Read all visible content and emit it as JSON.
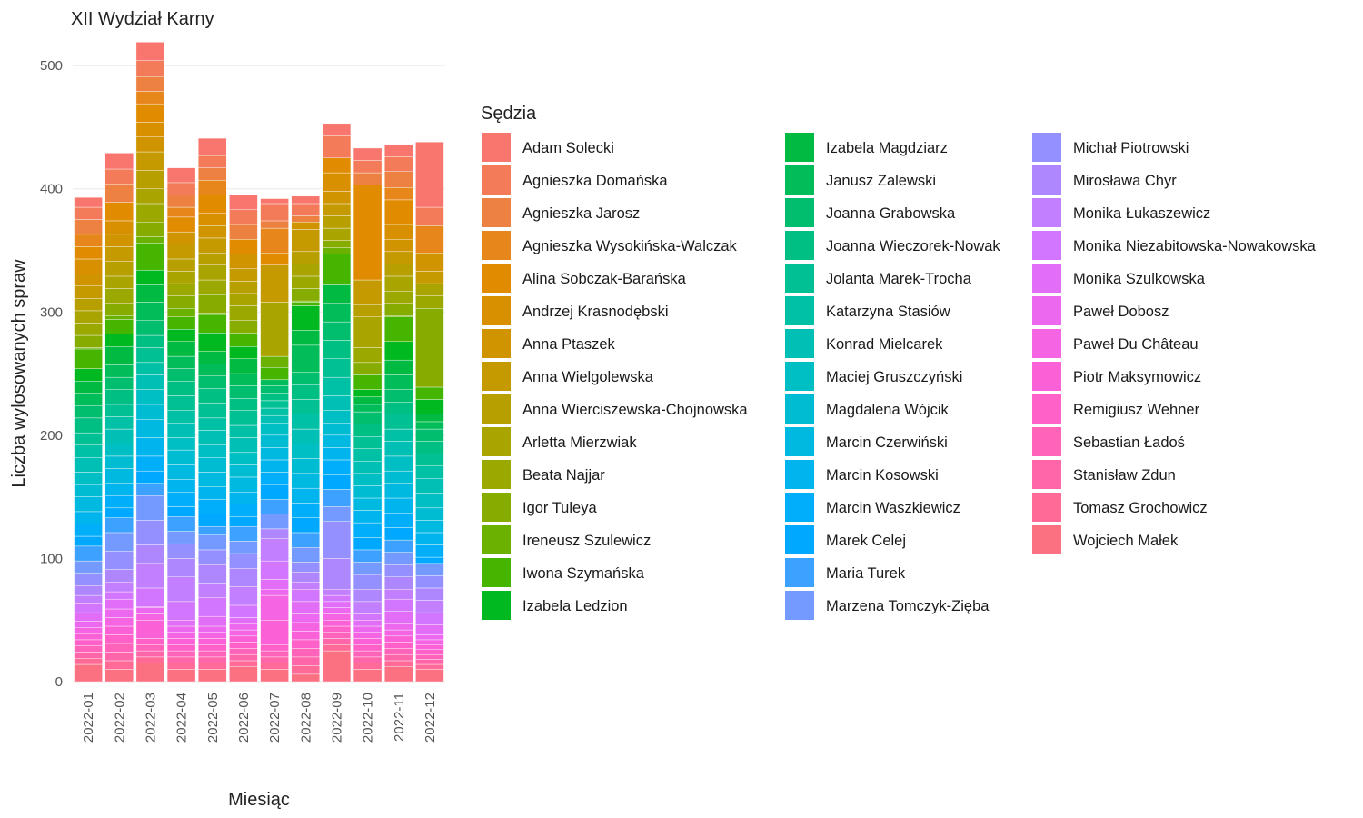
{
  "chart_data": {
    "type": "stacked_bar",
    "title": "XII Wydział Karny",
    "x_label": "Miesiąc",
    "y_label": "Liczba wylosowanych spraw",
    "legend_title": "Sędzia",
    "legend_position": "right",
    "grid": true,
    "categories": [
      "2022-01",
      "2022-02",
      "2022-03",
      "2022-04",
      "2022-05",
      "2022-06",
      "2022-07",
      "2022-08",
      "2022-09",
      "2022-10",
      "2022-11",
      "2022-12"
    ],
    "ylim": [
      0,
      520
    ],
    "yticks": [
      0,
      100,
      200,
      300,
      400,
      500
    ],
    "series": [
      {
        "name": "Adam Solecki",
        "color": "#F8766D",
        "values": [
          8,
          13,
          15,
          12,
          14,
          12,
          4,
          6,
          10,
          10,
          10,
          53
        ]
      },
      {
        "name": "Agnieszka Domańska",
        "color": "#F37B59",
        "values": [
          10,
          12,
          13,
          10,
          10,
          12,
          14,
          10,
          18,
          10,
          12,
          15
        ]
      },
      {
        "name": "Agnieszka Jarosz",
        "color": "#ED8141",
        "values": [
          12,
          15,
          12,
          10,
          10,
          12,
          6,
          5,
          0,
          10,
          13,
          0
        ]
      },
      {
        "name": "Agnieszka Wysokińska-Walczak",
        "color": "#E7861B",
        "values": [
          10,
          0,
          10,
          8,
          12,
          0,
          20,
          0,
          0,
          0,
          10,
          22
        ]
      },
      {
        "name": "Alina Sobczak-Barańska",
        "color": "#E08B00",
        "values": [
          10,
          15,
          15,
          12,
          15,
          12,
          10,
          0,
          12,
          77,
          20,
          0
        ]
      },
      {
        "name": "Andrzej Krasnodębski",
        "color": "#D89000",
        "values": [
          12,
          11,
          12,
          0,
          10,
          0,
          0,
          0,
          15,
          0,
          12,
          0
        ]
      },
      {
        "name": "Anna Ptaszek",
        "color": "#CF9400",
        "values": [
          10,
          10,
          12,
          10,
          10,
          12,
          0,
          6,
          10,
          0,
          10,
          15
        ]
      },
      {
        "name": "Anna Wielgolewska",
        "color": "#C49A00",
        "values": [
          10,
          12,
          15,
          12,
          12,
          10,
          30,
          18,
          10,
          20,
          10,
          10
        ]
      },
      {
        "name": "Anna Wierciszewska-Chojnowska",
        "color": "#B79F00",
        "values": [
          10,
          12,
          15,
          10,
          10,
          10,
          0,
          10,
          10,
          10,
          10,
          0
        ]
      },
      {
        "name": "Arletta Mierzwiak",
        "color": "#A9A400",
        "values": [
          10,
          10,
          12,
          10,
          12,
          10,
          44,
          10,
          10,
          25,
          12,
          10
        ]
      },
      {
        "name": "Beata Najjar",
        "color": "#9AA800",
        "values": [
          10,
          12,
          15,
          10,
          12,
          12,
          0,
          10,
          0,
          12,
          10,
          10
        ]
      },
      {
        "name": "Igor Tuleya",
        "color": "#86AC00",
        "values": [
          10,
          10,
          12,
          10,
          15,
          10,
          0,
          10,
          6,
          10,
          10,
          64
        ]
      },
      {
        "name": "Ireneusz Szulewicz",
        "color": "#6BB100",
        "values": [
          1,
          3,
          5,
          7,
          1,
          1,
          9,
          1,
          5,
          0,
          1,
          0
        ]
      },
      {
        "name": "Iwona Szymańska",
        "color": "#45B500",
        "values": [
          16,
          12,
          22,
          10,
          15,
          10,
          10,
          3,
          25,
          12,
          20,
          10
        ]
      },
      {
        "name": "Izabela Ledzion",
        "color": "#00B81F",
        "values": [
          10,
          10,
          12,
          10,
          15,
          10,
          0,
          20,
          0,
          6,
          15,
          12
        ]
      },
      {
        "name": "Izabela Magdziarz",
        "color": "#00BA42",
        "values": [
          10,
          15,
          14,
          12,
          10,
          12,
          0,
          12,
          15,
          6,
          12,
          6
        ]
      },
      {
        "name": "Janusz Zalewski",
        "color": "#00BC59",
        "values": [
          10,
          10,
          15,
          10,
          10,
          10,
          5,
          22,
          15,
          6,
          12,
          6
        ]
      },
      {
        "name": "Joanna Grabowska",
        "color": "#00BE6E",
        "values": [
          10,
          10,
          12,
          10,
          10,
          10,
          6,
          10,
          15,
          10,
          10,
          10
        ]
      },
      {
        "name": "Joanna Wieczorek-Nowak",
        "color": "#00BF82",
        "values": [
          12,
          12,
          10,
          12,
          12,
          10,
          6,
          12,
          15,
          10,
          10,
          10
        ]
      },
      {
        "name": "Jolanta Marek-Trocha",
        "color": "#00C094",
        "values": [
          10,
          10,
          12,
          12,
          12,
          12,
          6,
          12,
          15,
          10,
          12,
          10
        ]
      },
      {
        "name": "Katarzyna Stasiów",
        "color": "#00C1A5",
        "values": [
          10,
          10,
          10,
          10,
          10,
          10,
          6,
          12,
          15,
          10,
          10,
          10
        ]
      },
      {
        "name": "Konrad Mielcarek",
        "color": "#00C0B5",
        "values": [
          12,
          12,
          12,
          12,
          12,
          12,
          6,
          12,
          12,
          10,
          12,
          12
        ]
      },
      {
        "name": "Maciej Gruszczyński",
        "color": "#00BFC4",
        "values": [
          10,
          10,
          12,
          10,
          10,
          10,
          10,
          12,
          10,
          10,
          12,
          12
        ]
      },
      {
        "name": "Magdalena Wójcik",
        "color": "#00BCD3",
        "values": [
          10,
          10,
          12,
          12,
          12,
          10,
          10,
          12,
          10,
          10,
          10,
          10
        ]
      },
      {
        "name": "Marcin Czerwiński",
        "color": "#00B9E1",
        "values": [
          12,
          12,
          15,
          12,
          12,
          12,
          10,
          12,
          10,
          10,
          12,
          10
        ]
      },
      {
        "name": "Marcin Kosowski",
        "color": "#00B4EE",
        "values": [
          10,
          10,
          15,
          10,
          10,
          10,
          10,
          12,
          10,
          10,
          12,
          10
        ]
      },
      {
        "name": "Marcin Waszkiewicz",
        "color": "#00AEF9",
        "values": [
          10,
          10,
          12,
          12,
          12,
          10,
          10,
          12,
          12,
          12,
          12,
          10
        ]
      },
      {
        "name": "Marek Celej",
        "color": "#00A8FF",
        "values": [
          8,
          8,
          10,
          8,
          10,
          8,
          12,
          12,
          12,
          10,
          10,
          5
        ]
      },
      {
        "name": "Maria Turek",
        "color": "#3DA1FF",
        "values": [
          12,
          12,
          10,
          12,
          7,
          12,
          12,
          12,
          14,
          10,
          10,
          0
        ]
      },
      {
        "name": "Marzena Tomczyk-Zięba",
        "color": "#7499FF",
        "values": [
          10,
          15,
          20,
          10,
          12,
          10,
          12,
          12,
          12,
          10,
          10,
          10
        ]
      },
      {
        "name": "Michał Piotrowski",
        "color": "#9590FF",
        "values": [
          10,
          15,
          20,
          12,
          12,
          12,
          0,
          8,
          30,
          12,
          10,
          10
        ]
      },
      {
        "name": "Mirosława Chyr",
        "color": "#AE87FF",
        "values": [
          8,
          10,
          15,
          15,
          15,
          15,
          8,
          8,
          25,
          10,
          10,
          10
        ]
      },
      {
        "name": "Monika Łukaszewicz",
        "color": "#C27FFF",
        "values": [
          6,
          8,
          20,
          20,
          12,
          15,
          18,
          6,
          5,
          10,
          8,
          10
        ]
      },
      {
        "name": "Monika Niezabitowska-Nowakowska",
        "color": "#D376FF",
        "values": [
          8,
          6,
          15,
          15,
          15,
          10,
          15,
          10,
          5,
          5,
          10,
          10
        ]
      },
      {
        "name": "Monika Szulkowska",
        "color": "#E26EF7",
        "values": [
          7,
          8,
          1,
          5,
          8,
          5,
          8,
          10,
          5,
          5,
          10,
          8
        ]
      },
      {
        "name": "Paweł Dobosz",
        "color": "#EC68EE",
        "values": [
          5,
          7,
          5,
          5,
          5,
          5,
          5,
          7,
          5,
          5,
          5,
          4
        ]
      },
      {
        "name": "Paweł Du Château",
        "color": "#F564E3",
        "values": [
          5,
          7,
          5,
          5,
          5,
          5,
          20,
          7,
          5,
          5,
          5,
          4
        ]
      },
      {
        "name": "Piotr Maksymowicz",
        "color": "#FB61D7",
        "values": [
          5,
          7,
          15,
          5,
          5,
          5,
          20,
          7,
          5,
          5,
          5,
          4
        ]
      },
      {
        "name": "Remigiusz Wehner",
        "color": "#FF61C9",
        "values": [
          5,
          7,
          5,
          5,
          5,
          5,
          5,
          7,
          5,
          5,
          5,
          4
        ]
      },
      {
        "name": "Sebastian Ładoś",
        "color": "#FF63BA",
        "values": [
          5,
          7,
          5,
          5,
          5,
          5,
          5,
          7,
          5,
          5,
          5,
          4
        ]
      },
      {
        "name": "Stanisław Zdun",
        "color": "#FF66A9",
        "values": [
          5,
          7,
          5,
          5,
          5,
          5,
          5,
          7,
          5,
          5,
          5,
          4
        ]
      },
      {
        "name": "Tomasz Grochowicz",
        "color": "#FF6A97",
        "values": [
          5,
          7,
          5,
          5,
          5,
          5,
          5,
          7,
          5,
          5,
          5,
          4
        ]
      },
      {
        "name": "Wojciech Małek",
        "color": "#FC7181",
        "values": [
          14,
          10,
          15,
          10,
          10,
          12,
          10,
          6,
          25,
          10,
          12,
          10
        ]
      }
    ]
  }
}
